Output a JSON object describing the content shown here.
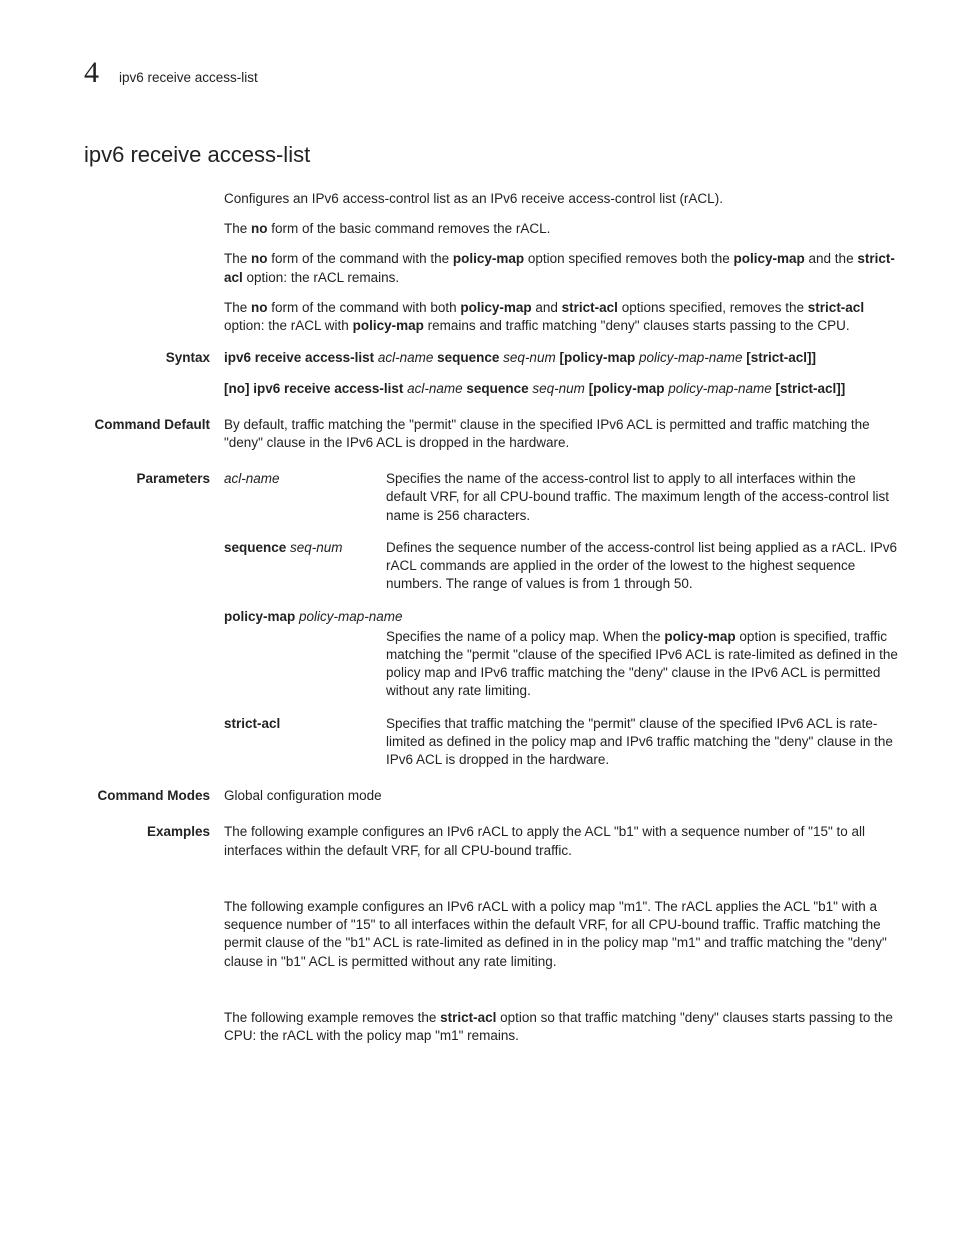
{
  "header": {
    "chapter": "4",
    "running": "ipv6 receive access-list"
  },
  "title": "ipv6 receive access-list",
  "intro": {
    "p1": "Configures an IPv6 access-control list as an IPv6 receive access-control list (rACL).",
    "p2_pre": "The ",
    "p2_no": "no",
    "p2_post": " form of the basic command removes the rACL.",
    "p3_a": "The ",
    "p3_no": "no",
    "p3_b": " form of the command with the ",
    "p3_pm": "policy-map",
    "p3_c": " option specified removes both the ",
    "p3_pm2": "policy-map",
    "p3_d": " and the ",
    "p3_sa": "strict-acl",
    "p3_e": " option: the rACL remains.",
    "p4_a": "The ",
    "p4_no": "no",
    "p4_b": " form of the command with both ",
    "p4_pm": "policy-map",
    "p4_c": " and ",
    "p4_sa": "strict-acl",
    "p4_d": " options specified, removes the ",
    "p4_sa2": "strict-acl",
    "p4_e": " option: the rACL with ",
    "p4_pm2": "policy-map",
    "p4_f": " remains and traffic matching \"deny\" clauses starts passing to the CPU."
  },
  "labels": {
    "syntax": "Syntax",
    "default": "Command Default",
    "params": "Parameters",
    "modes": "Command Modes",
    "examples": "Examples"
  },
  "syntax": {
    "l1": {
      "a": "ipv6 receive access-list ",
      "acl": "acl-name",
      "b": " sequence ",
      "seq": "seq-num",
      "c": " [policy-map ",
      "pmn": "policy-map-name",
      "d": " [strict-acl]]"
    },
    "l2": {
      "a": "[no] ipv6 receive access-list ",
      "acl": "acl-name",
      "b": " sequence ",
      "seq": "seq-num",
      "c": " [policy-map ",
      "pmn": "policy-map-name",
      "d": " [strict-acl]]"
    }
  },
  "default_text": "By default, traffic matching the \"permit\" clause in the specified IPv6 ACL is permitted and traffic matching the \"deny\" clause in the IPv6 ACL is dropped in the hardware.",
  "params": {
    "acl": {
      "key": "acl-name",
      "desc": "Specifies the name of the access-control list to apply to all interfaces within the default VRF, for all CPU-bound traffic. The maximum length of the access-control list name is 256 characters."
    },
    "seq": {
      "key_b": "sequence ",
      "key_i": "seq-num",
      "desc": "Defines the sequence number of the access-control list being applied as a rACL. IPv6 rACL commands are applied in the order of the lowest to the highest sequence numbers. The range of values is from 1 through 50."
    },
    "pm": {
      "key_b": "policy-map ",
      "key_i": "policy-map-name",
      "desc_a": "Specifies the name of a policy map. When the ",
      "desc_pm": "policy-map",
      "desc_b": " option is specified, traffic matching the \"permit \"clause of the specified IPv6 ACL is rate-limited as defined in the policy map and IPv6 traffic matching the \"deny\" clause in the IPv6 ACL is permitted without any rate limiting."
    },
    "sa": {
      "key": "strict-acl",
      "desc": "Specifies that traffic matching the \"permit\" clause of the specified IPv6 ACL is rate-limited as defined in the policy map and IPv6 traffic matching the \"deny\" clause in the IPv6 ACL is dropped in the hardware."
    }
  },
  "modes": "Global configuration mode",
  "examples": {
    "e1": "The following example configures an IPv6 rACL to apply the ACL \"b1\" with a sequence number of \"15\" to all interfaces within the default VRF, for all CPU-bound traffic.",
    "e2": "The following example configures an IPv6 rACL with a policy map \"m1\". The rACL applies the ACL \"b1\" with a sequence number of \"15\" to all interfaces within the default VRF, for all CPU-bound traffic. Traffic matching the permit clause of the \"b1\" ACL is rate-limited as defined in in the policy map \"m1\" and traffic matching the \"deny\" clause in \"b1\" ACL is permitted without any rate limiting.",
    "e3_a": "The following example removes the ",
    "e3_sa": "strict-acl",
    "e3_b": " option so that traffic matching \"deny\" clauses starts passing to the CPU: the rACL with the policy map \"m1\" remains."
  }
}
